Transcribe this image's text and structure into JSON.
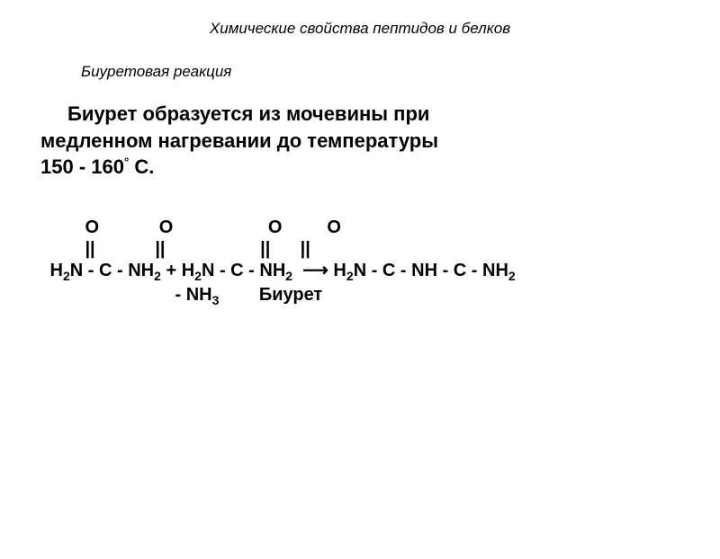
{
  "title": "Химические свойства пептидов и белков",
  "subtitle": "Биуретовая реакция",
  "paragraph_line1": "Биурет образуется из мочевины при",
  "paragraph_line2": "медленном нагревании до температуры",
  "paragraph_line3_a": "150 - 160",
  "paragraph_line3_deg": "°",
  "paragraph_line3_b": " С.",
  "eq": {
    "row1": "        O            O                   O         O",
    "row2": "        ||            ||                   ||      ||",
    "row3a": " H",
    "row3b": "N - C - NH",
    "row3c": " + H",
    "row3d": "N - C - NH",
    "row3e": "  ⟶ H",
    "row3f": "N - C - NH - C - NH",
    "row4a": "                          - NH",
    "row4b": "        Биурет"
  },
  "style": {
    "background": "#ffffff",
    "text_color": "#000000",
    "title_fontsize": 17,
    "subtitle_fontsize": 17,
    "paragraph_fontsize": 22,
    "equation_fontsize": 20
  }
}
